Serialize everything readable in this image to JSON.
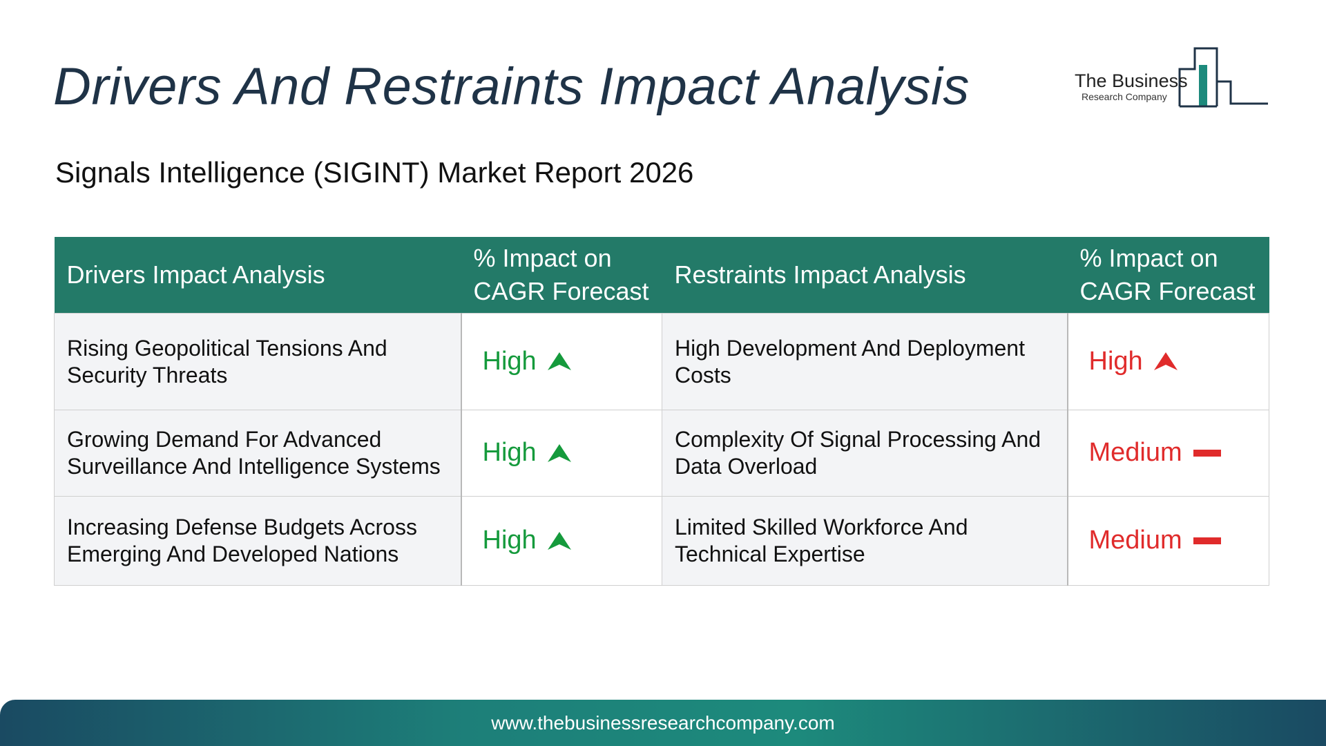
{
  "header": {
    "title": "Drivers And Restraints Impact Analysis",
    "subtitle": "Signals Intelligence (SIGINT) Market Report 2026"
  },
  "logo": {
    "name": "The Business",
    "tagline": "Research Company",
    "accent_color": "#1d8a7c"
  },
  "table": {
    "headers": {
      "drivers": "Drivers Impact Analysis",
      "drivers_impact": "% Impact on CAGR Forecast",
      "restraints": "Restraints Impact Analysis",
      "restraints_impact": "% Impact on CAGR Forecast"
    },
    "header_color": "#237a68",
    "rows": [
      {
        "driver": "Rising Geopolitical Tensions And Security Threats",
        "driver_impact": "High",
        "driver_icon": "up-arrow-green-icon",
        "restraint": "High Development And Deployment Costs",
        "restraint_impact": "High",
        "restraint_icon": "up-arrow-red-icon"
      },
      {
        "driver": "Growing Demand For Advanced Surveillance And Intelligence Systems",
        "driver_impact": "High",
        "driver_icon": "up-arrow-green-icon",
        "restraint": "Complexity Of Signal Processing And Data Overload",
        "restraint_impact": "Medium",
        "restraint_icon": "dash-red-icon"
      },
      {
        "driver": "Increasing Defense Budgets Across Emerging And Developed Nations",
        "driver_impact": "High",
        "driver_icon": "up-arrow-green-icon",
        "restraint": "Limited Skilled Workforce And Technical Expertise",
        "restraint_impact": "Medium",
        "restraint_icon": "dash-red-icon"
      }
    ],
    "colors": {
      "positive": "#159a3c",
      "negative": "#e02b2b"
    }
  },
  "footer": {
    "url": "www.thebusinessresearchcompany.com"
  }
}
